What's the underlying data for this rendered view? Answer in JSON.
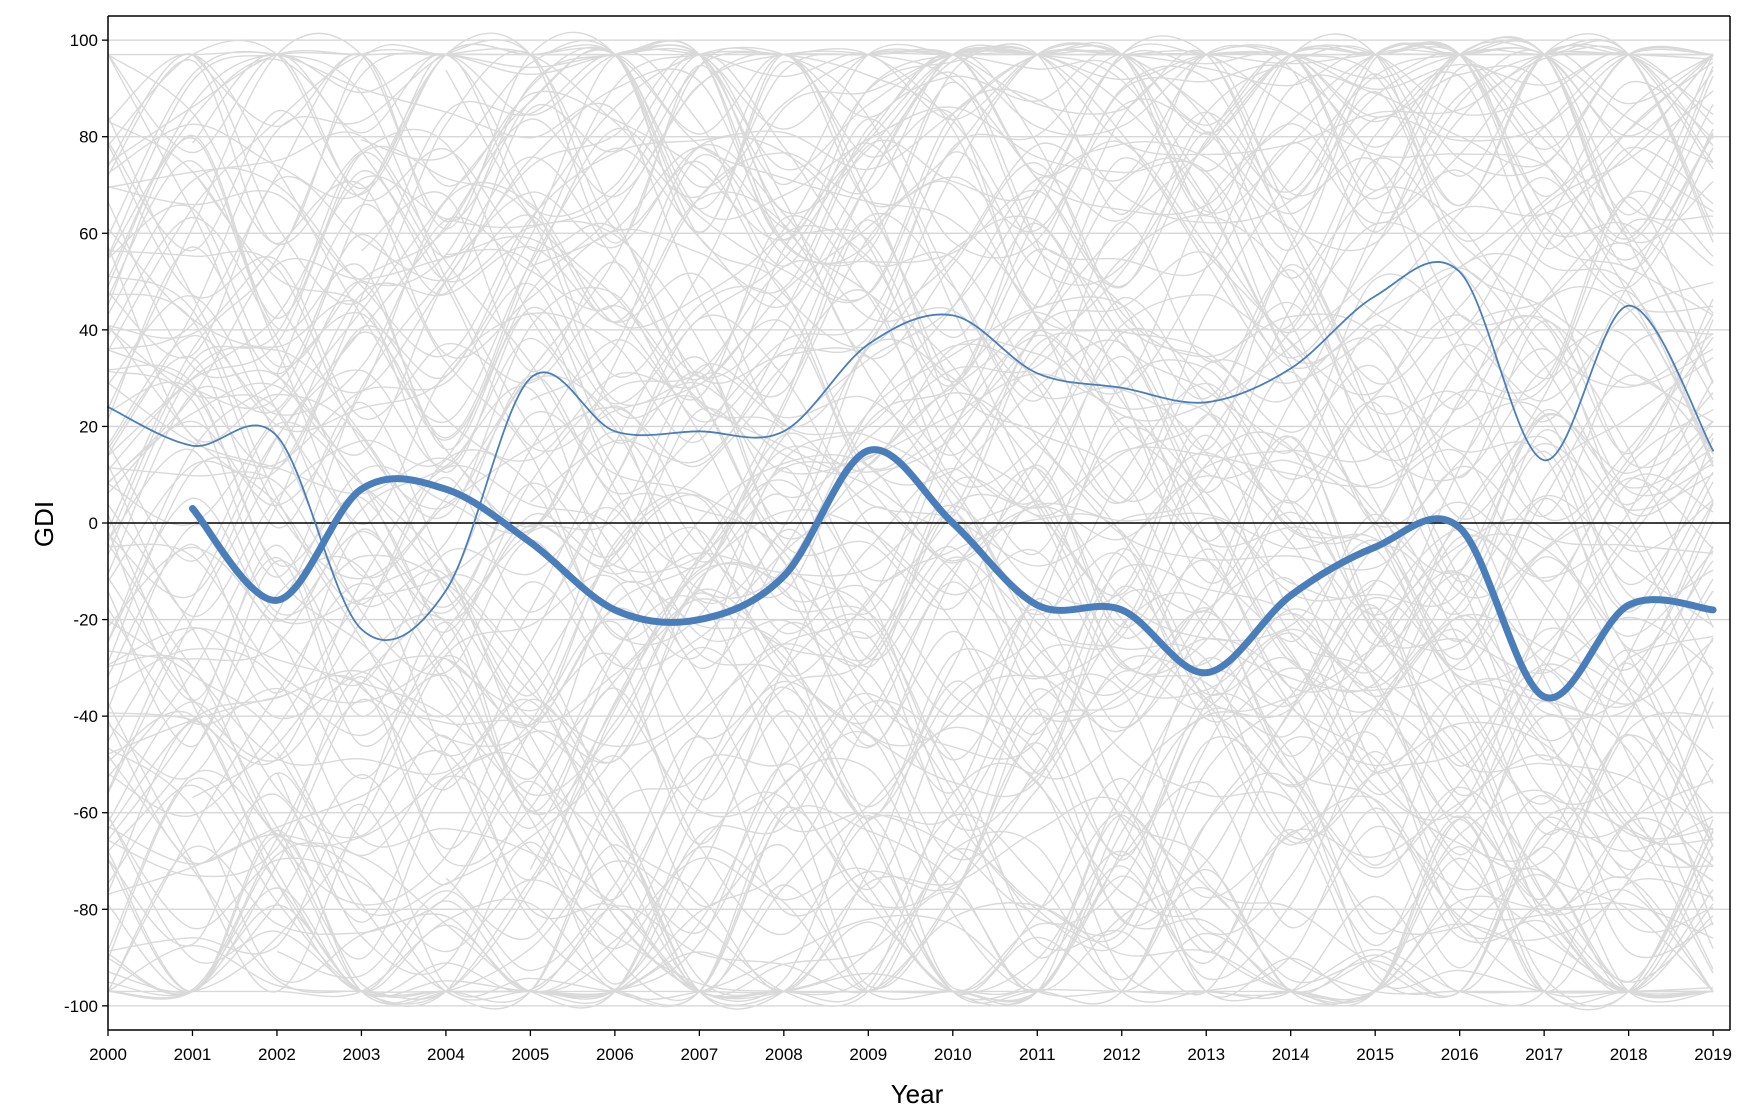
{
  "chart_data": {
    "type": "line",
    "title": "",
    "xlabel": "Year",
    "ylabel": "GDI",
    "x": [
      2000,
      2001,
      2002,
      2003,
      2004,
      2005,
      2006,
      2007,
      2008,
      2009,
      2010,
      2011,
      2012,
      2013,
      2014,
      2015,
      2016,
      2017,
      2018,
      2019
    ],
    "xlim": [
      2000,
      2019.2
    ],
    "ylim": [
      -105,
      105
    ],
    "yticks": [
      100,
      80,
      60,
      40,
      20,
      0,
      -20,
      -40,
      -60,
      -80,
      -100
    ],
    "grid": "horizontal",
    "zero_line": true,
    "legend": "none",
    "colors": {
      "background_lines": "#d9d9d9",
      "highlight": "#4a7ebb",
      "grid": "#d3d3d3",
      "axis": "#000000"
    },
    "series": [
      {
        "style": "thin-highlight",
        "x": [
          2000,
          2001,
          2002,
          2003,
          2004,
          2005,
          2006,
          2007,
          2008,
          2009,
          2010,
          2011,
          2012,
          2013,
          2014,
          2015,
          2016,
          2017,
          2018,
          2019
        ],
        "values": [
          24,
          16,
          18,
          -22,
          -14,
          30,
          19,
          19,
          19,
          37,
          43,
          31,
          28,
          25,
          32,
          47,
          52,
          13,
          45,
          15
        ]
      },
      {
        "style": "thick-highlight",
        "x": [
          2001,
          2002,
          2003,
          2004,
          2005,
          2006,
          2007,
          2008,
          2009,
          2010,
          2011,
          2012,
          2013,
          2014,
          2015,
          2016,
          2017,
          2018,
          2019
        ],
        "values": [
          3,
          -16,
          7,
          7,
          -4,
          -18,
          -20,
          -11,
          15,
          0,
          -17,
          -18,
          -31,
          -15,
          -5,
          -1,
          -36,
          -17,
          -18
        ]
      }
    ],
    "background_series_count": 150
  }
}
